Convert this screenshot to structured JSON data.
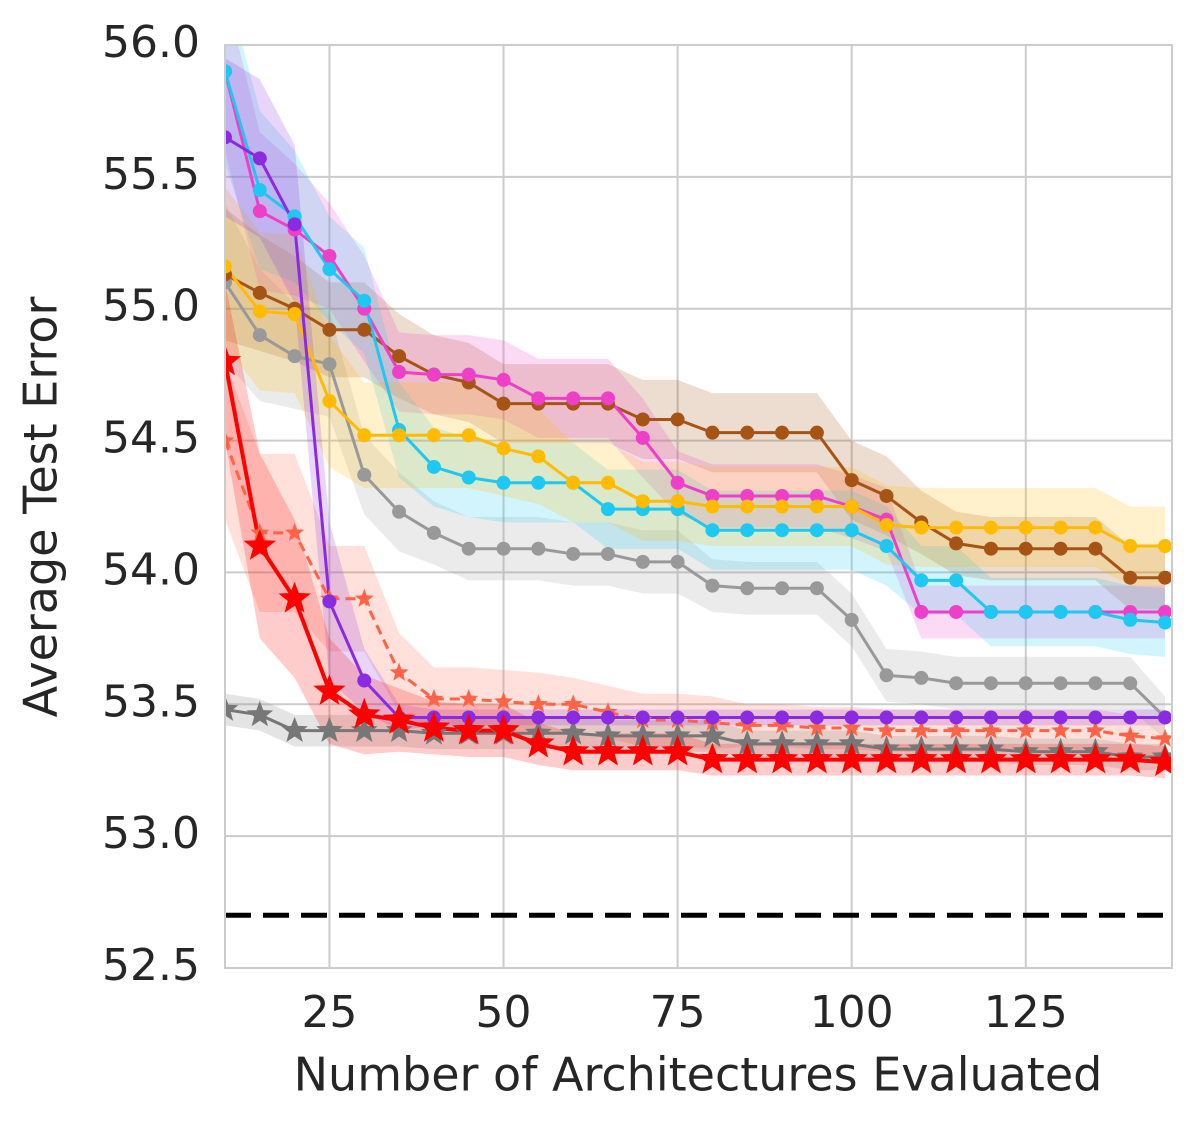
{
  "chart_data": {
    "type": "line",
    "xlabel": "Number of Architectures Evaluated",
    "ylabel": "Average Test Error",
    "xlim": [
      10,
      146
    ],
    "ylim": [
      52.5,
      56.0
    ],
    "xticks": [
      25,
      50,
      75,
      100,
      125
    ],
    "yticks": [
      52.5,
      {
        "value": 53,
        "label": "53.0"
      },
      53.5,
      {
        "value": 54,
        "label": "54.0"
      },
      54.5,
      {
        "value": 55,
        "label": "55.0"
      },
      55.5,
      {
        "value": 56,
        "label": "56.0"
      }
    ],
    "grid": true,
    "x": [
      10,
      15,
      20,
      25,
      30,
      35,
      40,
      45,
      50,
      55,
      60,
      65,
      70,
      75,
      80,
      85,
      90,
      95,
      100,
      105,
      110,
      115,
      120,
      125,
      130,
      135,
      140,
      145
    ],
    "reference_line": {
      "value": 52.7,
      "color": "#000000",
      "style": "dashed"
    },
    "series": [
      {
        "color": "#999999",
        "marker": "circle",
        "style": "solid",
        "values": [
          55.1,
          54.9,
          54.82,
          54.79,
          54.37,
          54.23,
          54.15,
          54.09,
          54.09,
          54.09,
          54.07,
          54.07,
          54.04,
          54.04,
          53.95,
          53.94,
          53.94,
          53.94,
          53.82,
          53.61,
          53.6,
          53.58,
          53.58,
          53.58,
          53.58,
          53.58,
          53.58,
          53.45
        ],
        "errors": [
          0.3,
          0.25,
          0.2,
          0.2,
          0.15,
          0.15,
          0.12,
          0.12,
          0.12,
          0.12,
          0.12,
          0.12,
          0.12,
          0.12,
          0.1,
          0.1,
          0.1,
          0.1,
          0.1,
          0.1,
          0.1,
          0.1,
          0.1,
          0.1,
          0.1,
          0.1,
          0.1,
          0.08
        ]
      },
      {
        "color": "#a65416",
        "marker": "circle",
        "style": "solid",
        "values": [
          55.13,
          55.06,
          55.0,
          54.92,
          54.92,
          54.82,
          54.75,
          54.72,
          54.64,
          54.64,
          54.64,
          54.64,
          54.58,
          54.58,
          54.53,
          54.53,
          54.53,
          54.53,
          54.35,
          54.29,
          54.19,
          54.11,
          54.09,
          54.09,
          54.09,
          54.09,
          53.98,
          53.98
        ],
        "errors": [
          0.25,
          0.22,
          0.2,
          0.18,
          0.18,
          0.16,
          0.15,
          0.15,
          0.15,
          0.15,
          0.15,
          0.15,
          0.15,
          0.15,
          0.15,
          0.15,
          0.15,
          0.15,
          0.15,
          0.15,
          0.12,
          0.12,
          0.12,
          0.12,
          0.12,
          0.12,
          0.12,
          0.12
        ]
      },
      {
        "color": "#ee3fc8",
        "marker": "circle",
        "style": "solid",
        "values": [
          55.9,
          55.37,
          55.3,
          55.2,
          55.0,
          54.76,
          54.75,
          54.75,
          54.73,
          54.66,
          54.66,
          54.66,
          54.51,
          54.34,
          54.29,
          54.29,
          54.29,
          54.29,
          54.25,
          54.2,
          53.85,
          53.85,
          53.85,
          53.85,
          53.85,
          53.85,
          53.85,
          53.85
        ],
        "errors": [
          0.3,
          0.3,
          0.25,
          0.2,
          0.2,
          0.15,
          0.15,
          0.15,
          0.15,
          0.15,
          0.15,
          0.15,
          0.15,
          0.12,
          0.12,
          0.12,
          0.12,
          0.12,
          0.12,
          0.12,
          0.1,
          0.1,
          0.1,
          0.1,
          0.1,
          0.1,
          0.1,
          0.1
        ]
      },
      {
        "color": "#1ec8f0",
        "marker": "circle",
        "style": "solid",
        "values": [
          55.9,
          55.45,
          55.35,
          55.15,
          55.03,
          54.54,
          54.4,
          54.36,
          54.34,
          54.34,
          54.34,
          54.24,
          54.24,
          54.24,
          54.16,
          54.16,
          54.16,
          54.16,
          54.16,
          54.1,
          53.97,
          53.97,
          53.85,
          53.85,
          53.85,
          53.85,
          53.82,
          53.81
        ],
        "errors": [
          0.35,
          0.3,
          0.25,
          0.2,
          0.2,
          0.18,
          0.15,
          0.15,
          0.15,
          0.15,
          0.15,
          0.15,
          0.15,
          0.15,
          0.15,
          0.15,
          0.15,
          0.15,
          0.15,
          0.15,
          0.13,
          0.13,
          0.13,
          0.13,
          0.13,
          0.13,
          0.13,
          0.13
        ]
      },
      {
        "color": "#ffbb00",
        "marker": "circle",
        "style": "solid",
        "values": [
          55.16,
          54.99,
          54.98,
          54.65,
          54.52,
          54.52,
          54.52,
          54.52,
          54.47,
          54.44,
          54.34,
          54.34,
          54.27,
          54.27,
          54.25,
          54.25,
          54.25,
          54.25,
          54.25,
          54.18,
          54.17,
          54.17,
          54.17,
          54.17,
          54.17,
          54.17,
          54.1,
          54.1
        ],
        "errors": [
          0.3,
          0.3,
          0.3,
          0.25,
          0.2,
          0.2,
          0.2,
          0.2,
          0.18,
          0.18,
          0.15,
          0.15,
          0.15,
          0.15,
          0.15,
          0.15,
          0.15,
          0.15,
          0.15,
          0.15,
          0.15,
          0.15,
          0.15,
          0.15,
          0.15,
          0.15,
          0.15,
          0.15
        ]
      },
      {
        "color": "#ff6347",
        "marker": "star",
        "style": "dashed",
        "values": [
          54.5,
          54.15,
          54.15,
          53.9,
          53.9,
          53.62,
          53.52,
          53.52,
          53.51,
          53.5,
          53.5,
          53.47,
          53.44,
          53.44,
          53.43,
          53.42,
          53.42,
          53.41,
          53.41,
          53.4,
          53.4,
          53.4,
          53.4,
          53.4,
          53.4,
          53.4,
          53.38,
          53.37
        ],
        "errors": [
          0.3,
          0.3,
          0.3,
          0.2,
          0.2,
          0.15,
          0.12,
          0.12,
          0.12,
          0.12,
          0.1,
          0.1,
          0.1,
          0.1,
          0.1,
          0.08,
          0.08,
          0.08,
          0.08,
          0.08,
          0.08,
          0.08,
          0.08,
          0.08,
          0.08,
          0.08,
          0.08,
          0.08
        ]
      },
      {
        "color": "#777777",
        "marker": "star",
        "style": "solid",
        "values": [
          53.48,
          53.46,
          53.4,
          53.4,
          53.4,
          53.4,
          53.39,
          53.39,
          53.39,
          53.39,
          53.39,
          53.38,
          53.38,
          53.38,
          53.38,
          53.35,
          53.35,
          53.35,
          53.35,
          53.33,
          53.33,
          53.33,
          53.33,
          53.32,
          53.32,
          53.32,
          53.3,
          53.3
        ],
        "errors": [
          0.06,
          0.06,
          0.06,
          0.06,
          0.06,
          0.06,
          0.06,
          0.06,
          0.06,
          0.06,
          0.06,
          0.06,
          0.06,
          0.06,
          0.06,
          0.05,
          0.05,
          0.05,
          0.05,
          0.05,
          0.05,
          0.05,
          0.05,
          0.05,
          0.05,
          0.05,
          0.05,
          0.05
        ]
      },
      {
        "color": "#8a2be2",
        "marker": "circle",
        "style": "solid",
        "values": [
          55.65,
          55.57,
          55.32,
          53.89,
          53.59,
          53.45,
          53.45,
          53.45,
          53.45,
          53.45,
          53.45,
          53.45,
          53.45,
          53.45,
          53.45,
          53.45,
          53.45,
          53.45,
          53.45,
          53.45,
          53.45,
          53.45,
          53.45,
          53.45,
          53.45,
          53.45,
          53.45,
          53.45
        ],
        "errors": [
          0.3,
          0.3,
          0.3,
          0.3,
          0.12,
          0.05,
          0.03,
          0.03,
          0.03,
          0.03,
          0.03,
          0.03,
          0.03,
          0.03,
          0.03,
          0.03,
          0.03,
          0.03,
          0.03,
          0.03,
          0.03,
          0.03,
          0.03,
          0.03,
          0.03,
          0.03,
          0.03,
          0.03
        ]
      },
      {
        "color": "#ff0000",
        "marker": "star",
        "style": "solid",
        "values": [
          54.8,
          54.1,
          53.9,
          53.55,
          53.46,
          53.44,
          53.41,
          53.4,
          53.4,
          53.35,
          53.32,
          53.32,
          53.32,
          53.32,
          53.29,
          53.29,
          53.29,
          53.29,
          53.29,
          53.29,
          53.29,
          53.29,
          53.29,
          53.29,
          53.29,
          53.29,
          53.29,
          53.28
        ],
        "errors": [
          0.3,
          0.35,
          0.3,
          0.2,
          0.15,
          0.12,
          0.1,
          0.1,
          0.1,
          0.08,
          0.07,
          0.07,
          0.07,
          0.07,
          0.06,
          0.06,
          0.06,
          0.06,
          0.06,
          0.06,
          0.06,
          0.06,
          0.06,
          0.06,
          0.06,
          0.06,
          0.06,
          0.06
        ]
      }
    ]
  }
}
